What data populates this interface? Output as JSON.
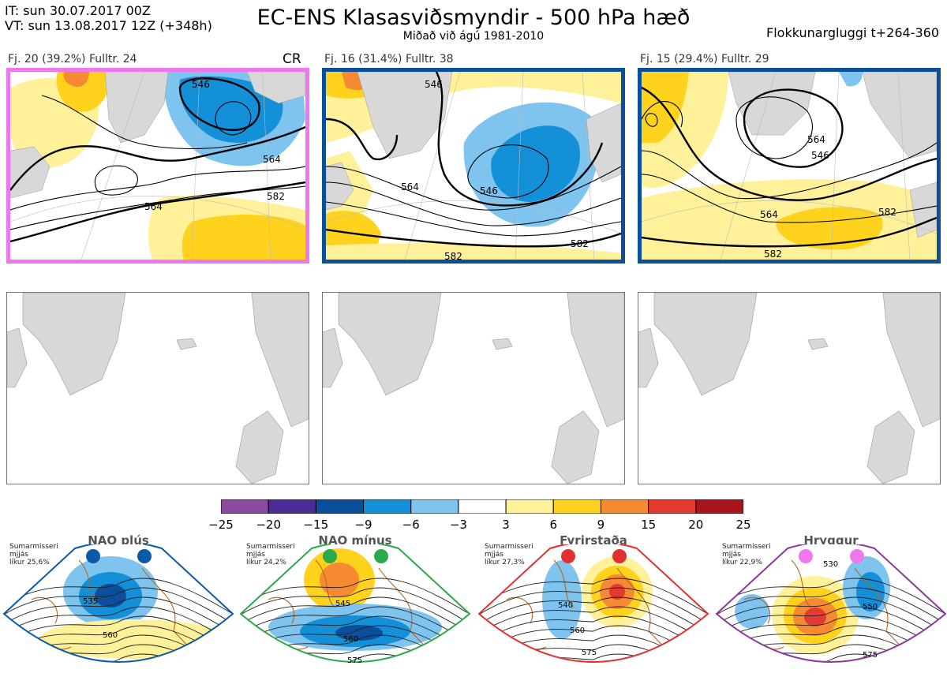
{
  "header": {
    "it_line": "IT: sun 30.07.2017 00Z",
    "vt_line": "VT: sun 13.08.2017 12Z  (+348h)",
    "title": "EC-ENS Klasasviðsmyndir - 500 hPa hæð",
    "subtitle": "Miðað við ágú 1981-2010",
    "window": "Flokkunargluggi t+264-360"
  },
  "panels": [
    {
      "label": "Fj. 20 (39.2%)   Fulltr. 24",
      "tag": "CR",
      "border_color": "#ee77ee",
      "contours": [
        "546",
        "564",
        "582",
        "564"
      ]
    },
    {
      "label": "Fj. 16 (31.4%)   Fulltr. 38",
      "tag": "",
      "border_color": "#0a4f9a",
      "contours": [
        "546",
        "546",
        "564",
        "582",
        "582"
      ]
    },
    {
      "label": "Fj. 15 (29.4%)   Fulltr. 29",
      "tag": "",
      "border_color": "#0a4f9a",
      "contours": [
        "546",
        "564",
        "564",
        "582",
        "582"
      ]
    }
  ],
  "colorbar": {
    "ticks": [
      "−25",
      "−20",
      "−15",
      "−9",
      "−6",
      "−3",
      "3",
      "6",
      "9",
      "15",
      "20",
      "25"
    ],
    "colors": [
      "#8b4a9c",
      "#4b2c96",
      "#0b4f9c",
      "#1490d8",
      "#7ec4ee",
      "#ffffff",
      "#fff19a",
      "#ffd21e",
      "#f58a32",
      "#e53a2f",
      "#a8161c"
    ]
  },
  "regimes": [
    {
      "name": "NAO plús",
      "season": "Sumarmisseri",
      "qual": "mjjás",
      "prob": "líkur 25,6%",
      "frame_color": "#0b5aa8",
      "dot_color": "#0b5aa8",
      "contours": [
        "535",
        "560"
      ]
    },
    {
      "name": "NAO mínus",
      "season": "Sumarmisseri",
      "qual": "mjjás",
      "prob": "líkur 24,2%",
      "frame_color": "#2aaa4a",
      "dot_color": "#2aaa4a",
      "contours": [
        "545",
        "560",
        "575"
      ]
    },
    {
      "name": "Fyrirstaða",
      "season": "Sumarmisseri",
      "qual": "mjjás",
      "prob": "líkur 27,3%",
      "frame_color": "#e03030",
      "dot_color": "#e03030",
      "contours": [
        "540",
        "560",
        "575"
      ]
    },
    {
      "name": "Hryggur",
      "season": "Sumarmisseri",
      "qual": "mjjás",
      "prob": "líkur 22,9%",
      "frame_color": "#8a3a9a",
      "dot_color": "#ee77ee",
      "contours": [
        "530",
        "550",
        "575"
      ]
    }
  ]
}
